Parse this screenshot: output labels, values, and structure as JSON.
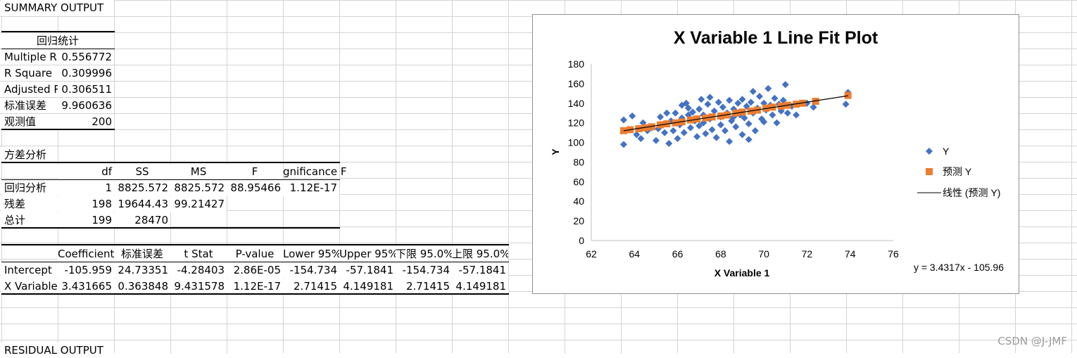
{
  "summary_title": "SUMMARY OUTPUT",
  "regression_stats": {
    "header": "回归统计",
    "rows": [
      {
        "label": "Multiple R",
        "value": "0.556772"
      },
      {
        "label": "R Square",
        "value": "0.309996"
      },
      {
        "label": "Adjusted R",
        "value": "0.306511"
      },
      {
        "label": "标准误差",
        "value": "9.960636"
      },
      {
        "label": "观测值",
        "value": "200"
      }
    ]
  },
  "anova": {
    "title": "方差分析",
    "headers": [
      "",
      "df",
      "SS",
      "MS",
      "F",
      "gnificance F"
    ],
    "rows": [
      [
        "回归分析",
        "1",
        "8825.572",
        "8825.572",
        "88.95466",
        "1.12E-17"
      ],
      [
        "残差",
        "198",
        "19644.43",
        "99.21427",
        "",
        ""
      ],
      [
        "总计",
        "199",
        "28470",
        "",
        "",
        ""
      ]
    ]
  },
  "coefficients": {
    "headers": [
      "",
      "Coefficients",
      "标准误差",
      "t Stat",
      "P-value",
      "Lower 95%",
      "Upper 95%",
      "下限 95.0%",
      "上限 95.0%"
    ],
    "rows": [
      [
        "Intercept",
        "-105.959",
        "24.73351",
        "-4.28403",
        "2.86E-05",
        "-154.734",
        "-57.1841",
        "-154.734",
        "-57.1841"
      ],
      [
        "X Variable",
        "3.431665",
        "0.363848",
        "9.431578",
        "1.12E-17",
        "2.71415",
        "4.149181",
        "2.71415",
        "4.149181"
      ]
    ]
  },
  "residual_title": "RESIDUAL OUTPUT",
  "watermark": "CSDN @J-JMF",
  "chart_data": {
    "type": "scatter",
    "title": "X Variable 1 Line Fit  Plot",
    "xlabel": "X Variable 1",
    "ylabel": "Y",
    "xlim": [
      62,
      76
    ],
    "ylim": [
      0,
      180
    ],
    "x_ticks": [
      "62",
      "64",
      "66",
      "68",
      "70",
      "72",
      "74",
      "76"
    ],
    "y_ticks": [
      "0",
      "20",
      "40",
      "60",
      "80",
      "100",
      "120",
      "140",
      "160",
      "180"
    ],
    "grid": false,
    "legend_position": "right",
    "equation": "y = 3.4317x - 105.96",
    "colors": {
      "Y": "#4472C4",
      "predicted": "#ED7D31",
      "trendline": "#000000"
    },
    "series": [
      {
        "name": "Y",
        "marker": "diamond",
        "points": [
          [
            63.5,
            98
          ],
          [
            63.5,
            123
          ],
          [
            63.9,
            127
          ],
          [
            64.1,
            108
          ],
          [
            64.3,
            104
          ],
          [
            64.4,
            120
          ],
          [
            64.8,
            115
          ],
          [
            65.0,
            102
          ],
          [
            65.1,
            114
          ],
          [
            65.2,
            126
          ],
          [
            65.3,
            118
          ],
          [
            65.4,
            110
          ],
          [
            65.5,
            130
          ],
          [
            65.6,
            99
          ],
          [
            65.7,
            122
          ],
          [
            65.8,
            112
          ],
          [
            66.0,
            104
          ],
          [
            66.1,
            118
          ],
          [
            66.2,
            138
          ],
          [
            66.2,
            125
          ],
          [
            66.3,
            110
          ],
          [
            66.4,
            140
          ],
          [
            66.5,
            128
          ],
          [
            66.6,
            115
          ],
          [
            66.7,
            131
          ],
          [
            66.8,
            122
          ],
          [
            66.9,
            106
          ],
          [
            67.0,
            134
          ],
          [
            67.0,
            117
          ],
          [
            67.1,
            144
          ],
          [
            67.2,
            128
          ],
          [
            67.3,
            109
          ],
          [
            67.4,
            139
          ],
          [
            67.5,
            124
          ],
          [
            67.5,
            146
          ],
          [
            67.6,
            113
          ],
          [
            67.7,
            132
          ],
          [
            67.8,
            105
          ],
          [
            67.9,
            141
          ],
          [
            68.0,
            126
          ],
          [
            68.0,
            118
          ],
          [
            68.1,
            136
          ],
          [
            68.2,
            112
          ],
          [
            68.3,
            130
          ],
          [
            68.4,
            101
          ],
          [
            68.4,
            143
          ],
          [
            68.5,
            122
          ],
          [
            68.6,
            134
          ],
          [
            68.7,
            116
          ],
          [
            68.8,
            140
          ],
          [
            68.9,
            128
          ],
          [
            69.0,
            108
          ],
          [
            69.0,
            144
          ],
          [
            69.1,
            125
          ],
          [
            69.2,
            137
          ],
          [
            69.3,
            119
          ],
          [
            69.4,
            141
          ],
          [
            69.5,
            130
          ],
          [
            69.5,
            152
          ],
          [
            69.6,
            112
          ],
          [
            69.7,
            135
          ],
          [
            69.8,
            147
          ],
          [
            69.9,
            124
          ],
          [
            70.0,
            140
          ],
          [
            70.0,
            121
          ],
          [
            70.1,
            133
          ],
          [
            70.2,
            155
          ],
          [
            70.3,
            138
          ],
          [
            70.4,
            128
          ],
          [
            70.5,
            145
          ],
          [
            70.6,
            120
          ],
          [
            70.8,
            132
          ],
          [
            70.9,
            143
          ],
          [
            71.0,
            159
          ],
          [
            71.1,
            130
          ],
          [
            71.3,
            137
          ],
          [
            71.5,
            128
          ],
          [
            72.0,
            140
          ],
          [
            72.3,
            136
          ],
          [
            73.8,
            139
          ],
          [
            73.9,
            151
          ],
          [
            65.9,
            130
          ],
          [
            67.2,
            120
          ],
          [
            68.6,
            126
          ],
          [
            69.3,
            103
          ],
          [
            64.6,
            112
          ],
          [
            66.5,
            135
          ],
          [
            70.7,
            139
          ]
        ]
      },
      {
        "name": "预测 Y",
        "marker": "square",
        "points": [
          [
            63.5,
            112
          ],
          [
            63.8,
            113
          ],
          [
            64.2,
            114
          ],
          [
            64.5,
            115
          ],
          [
            64.8,
            116
          ],
          [
            65.2,
            118
          ],
          [
            65.5,
            119
          ],
          [
            65.9,
            120
          ],
          [
            66.2,
            121
          ],
          [
            66.6,
            123
          ],
          [
            66.9,
            124
          ],
          [
            67.3,
            125
          ],
          [
            67.6,
            126
          ],
          [
            68.0,
            127
          ],
          [
            68.3,
            128
          ],
          [
            68.7,
            130
          ],
          [
            69.0,
            131
          ],
          [
            69.4,
            132
          ],
          [
            69.7,
            133
          ],
          [
            70.1,
            135
          ],
          [
            70.4,
            136
          ],
          [
            70.8,
            137
          ],
          [
            71.1,
            138
          ],
          [
            71.5,
            139
          ],
          [
            71.8,
            140
          ],
          [
            72.4,
            142
          ],
          [
            73.9,
            148
          ]
        ]
      },
      {
        "name": "线性 (预测 Y)",
        "marker": "line",
        "points": [
          [
            63.5,
            111.95
          ],
          [
            73.9,
            147.64
          ]
        ]
      }
    ]
  }
}
